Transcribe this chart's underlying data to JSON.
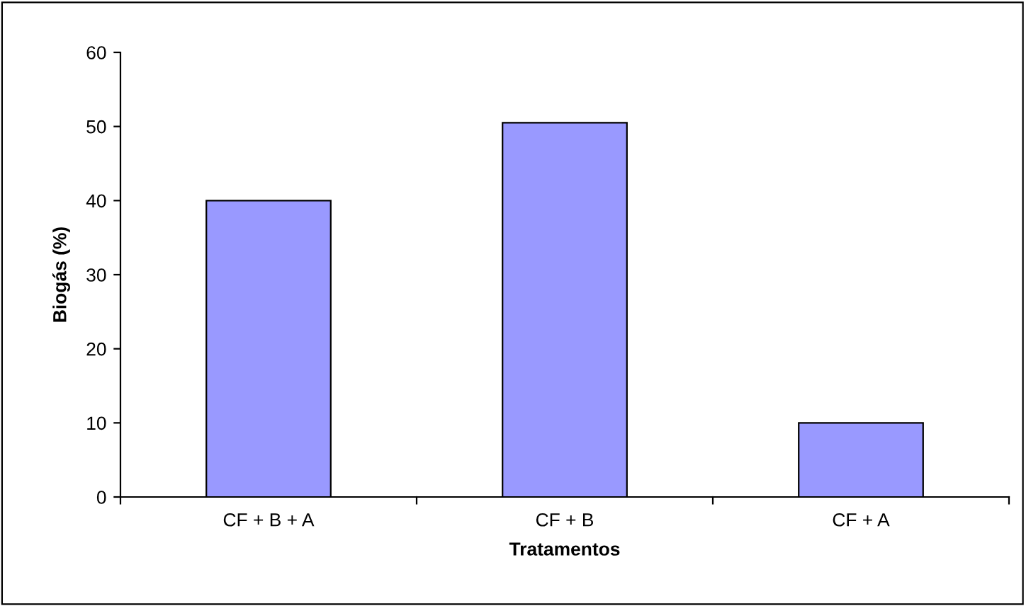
{
  "chart_data": {
    "type": "bar",
    "xlabel": "Tratamentos",
    "ylabel": "Biogás (%)",
    "categories": [
      "CF + B + A",
      "CF + B",
      "CF + A"
    ],
    "values": [
      40,
      50.5,
      10
    ],
    "color": "#9999ff",
    "ylim": [
      0,
      60
    ],
    "yticks": [
      0,
      10,
      20,
      30,
      40,
      50,
      60
    ],
    "grid": false,
    "legend": false
  }
}
